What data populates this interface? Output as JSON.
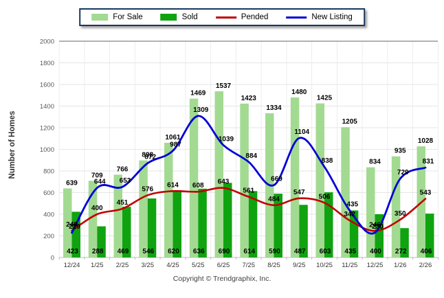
{
  "legend": {
    "items": [
      {
        "label": "For Sale",
        "swatch": "box",
        "color": "#A3DA92"
      },
      {
        "label": "Sold",
        "swatch": "box",
        "color": "#10A310"
      },
      {
        "label": "Pended",
        "swatch": "line",
        "color": "#C00000"
      },
      {
        "label": "New Listing",
        "swatch": "line",
        "color": "#0000D8"
      }
    ]
  },
  "y_axis": {
    "title": "Number of Homes",
    "ticks": [
      0,
      200,
      400,
      600,
      800,
      1000,
      1200,
      1400,
      1600,
      1800,
      2000
    ]
  },
  "footer": {
    "copyright": "Copyright © Trendgraphix, Inc."
  },
  "chart_data": {
    "type": "bar",
    "title": "",
    "xlabel": "",
    "ylabel": "Number of Homes",
    "ylim": [
      0,
      2000
    ],
    "ytick_step": 200,
    "grid": true,
    "legend_position": "top",
    "categories": [
      "12/24",
      "1/25",
      "2/25",
      "3/25",
      "4/25",
      "5/25",
      "6/25",
      "7/25",
      "8/25",
      "9/25",
      "10/25",
      "11/25",
      "12/25",
      "1/26",
      "2/26"
    ],
    "series": [
      {
        "name": "For Sale",
        "type": "bar",
        "color": "#A3DA92",
        "values": [
          639,
          709,
          766,
          898,
          1061,
          1469,
          1537,
          1423,
          1334,
          1480,
          1425,
          1205,
          834,
          935,
          1028
        ]
      },
      {
        "name": "Sold",
        "type": "bar",
        "color": "#10A310",
        "values": [
          423,
          288,
          469,
          546,
          620,
          636,
          690,
          614,
          590,
          487,
          603,
          435,
          400,
          272,
          406
        ]
      },
      {
        "name": "Pended",
        "type": "line",
        "color": "#C00000",
        "values": [
          248,
          400,
          451,
          576,
          614,
          608,
          643,
          561,
          484,
          547,
          506,
          342,
          246,
          350,
          543
        ]
      },
      {
        "name": "New Listing",
        "type": "line",
        "color": "#0000D8",
        "values": [
          229,
          644,
          653,
          872,
          987,
          1309,
          1039,
          884,
          669,
          1104,
          838,
          435,
          230,
          729,
          831
        ]
      }
    ]
  }
}
